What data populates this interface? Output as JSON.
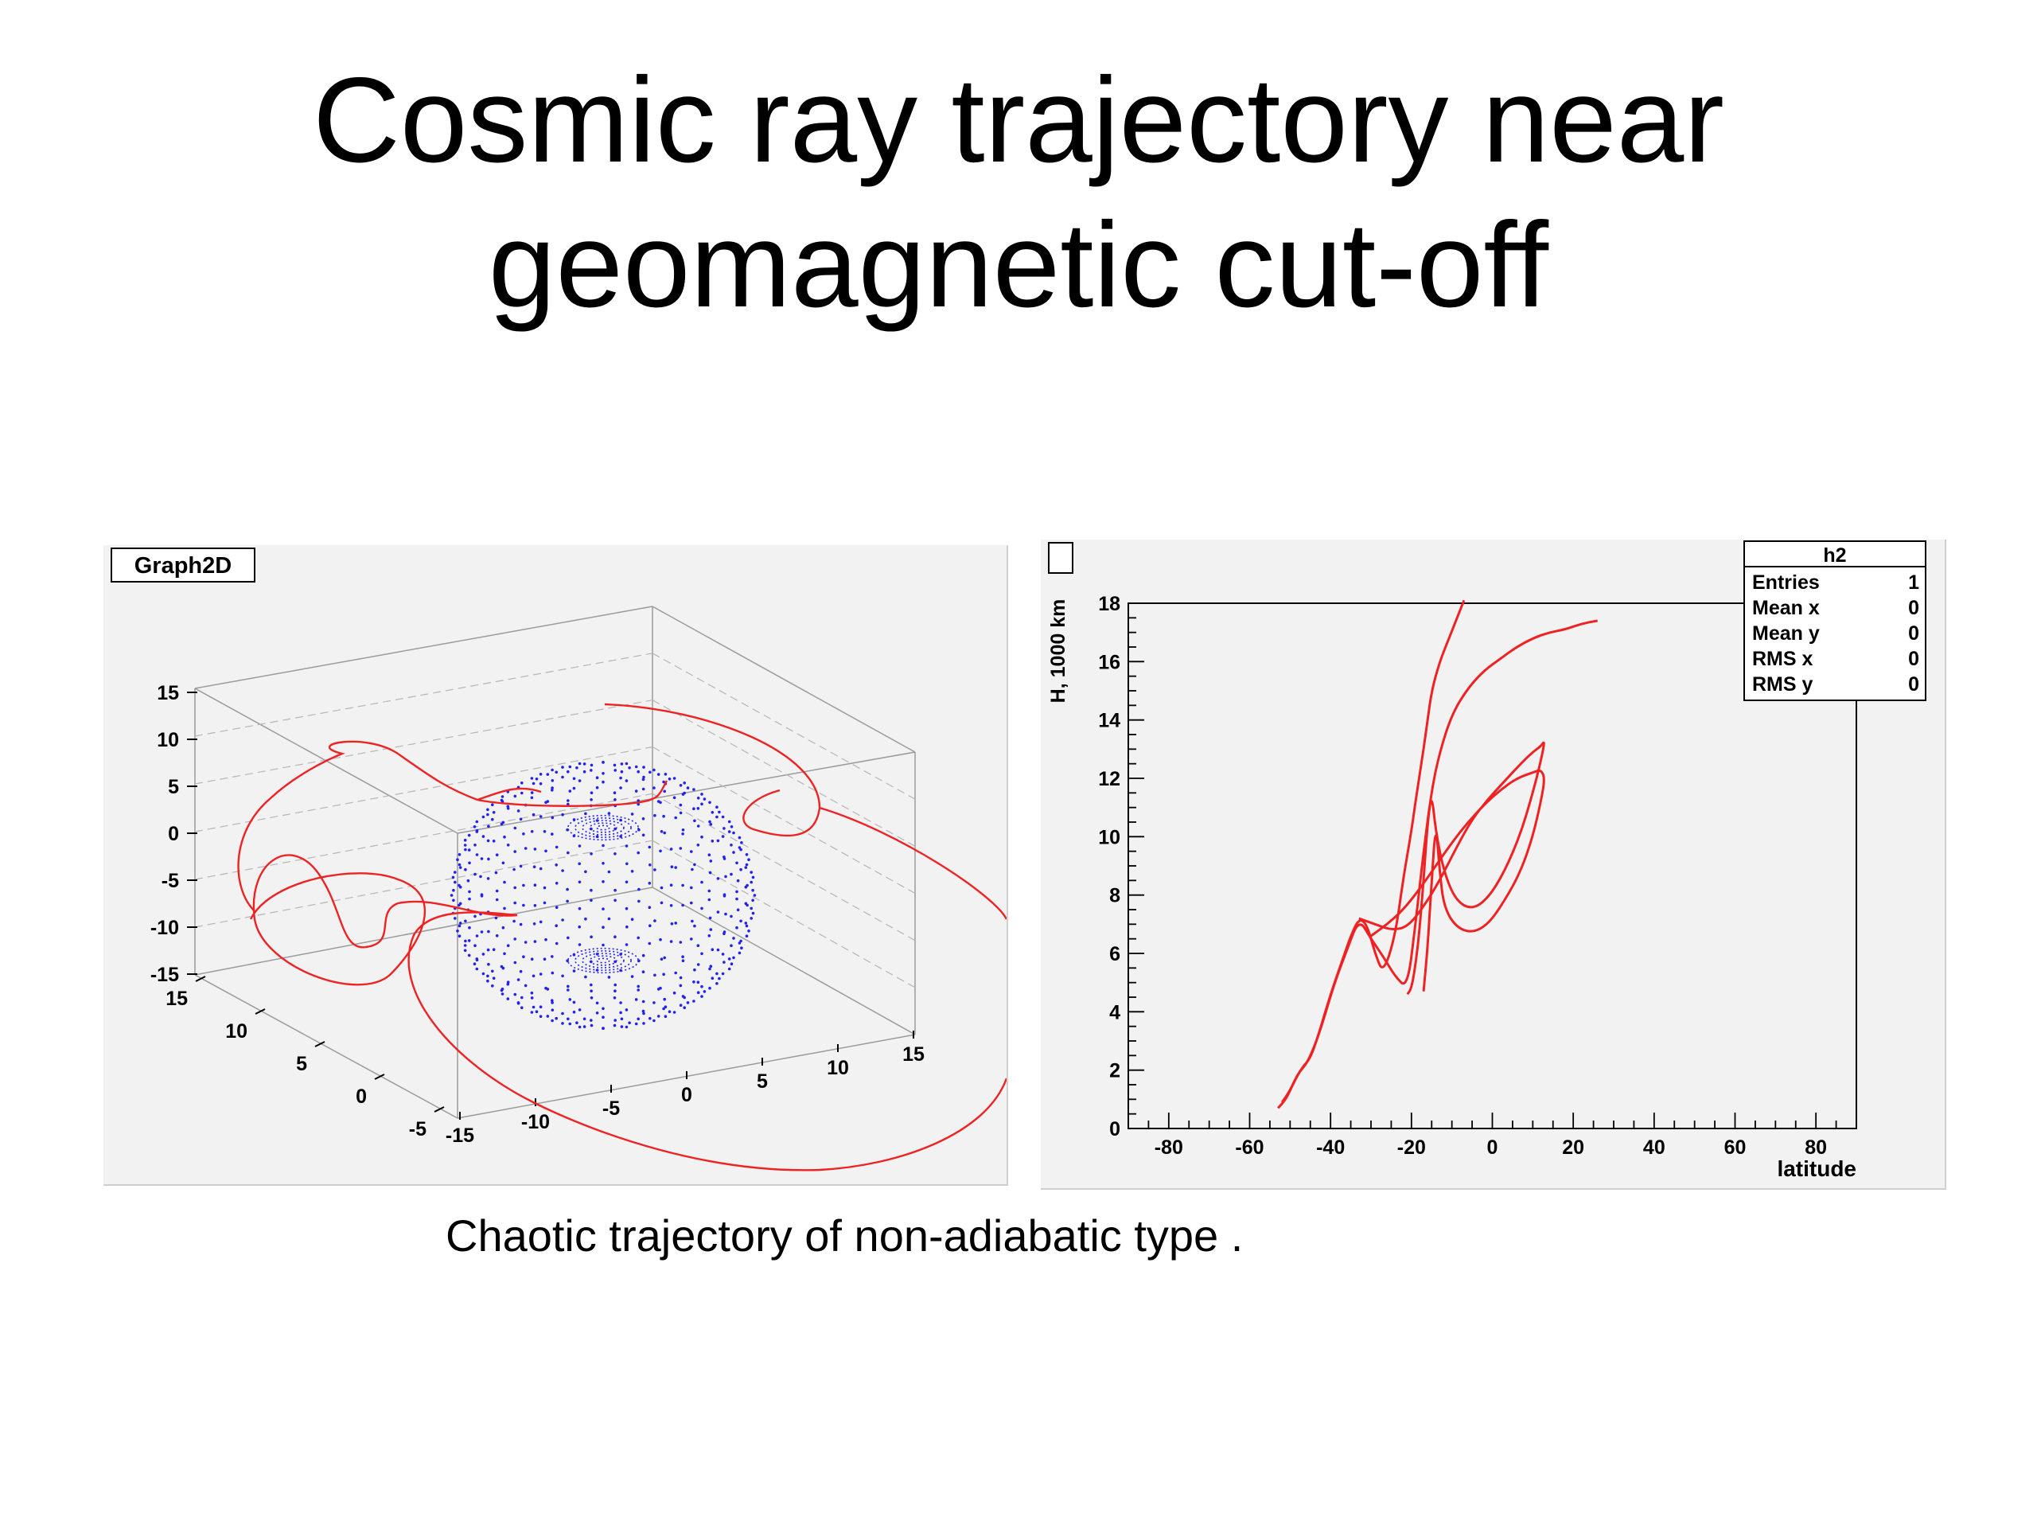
{
  "slide": {
    "title_line1": "Cosmic ray trajectory near",
    "title_line2": "geomagnetic cut-off",
    "caption": "Chaotic trajectory of non-adiabatic type ."
  },
  "chart_data": [
    {
      "type": "scatter",
      "label": "Graph2D",
      "dimensions": 3,
      "x_ticks": [
        "-15",
        "-10",
        "-5",
        "0",
        "5",
        "10",
        "15"
      ],
      "y_ticks": [
        "-5",
        "0",
        "5",
        "10",
        "15"
      ],
      "z_ticks": [
        "-15",
        "-10",
        "-5",
        "0",
        "5",
        "10",
        "15"
      ],
      "xlim": [
        -15,
        15
      ],
      "ylim": [
        -15,
        15
      ],
      "zlim": [
        -15,
        15
      ],
      "series": [
        {
          "points": "Earth sphere point cloud, radius ~6",
          "color": "#2222ee"
        },
        {
          "points": "cosmic ray trajectory curve",
          "color": "#ee2222"
        }
      ],
      "colors": {
        "earth": "#2222ee",
        "trajectory": "#ee2222"
      }
    },
    {
      "type": "line",
      "xlabel": "latitude",
      "ylabel": "H, 1000 km",
      "xlim": [
        -90,
        90
      ],
      "ylim": [
        0,
        18
      ],
      "x_ticks": [
        "-80",
        "-60",
        "-40",
        "-20",
        "0",
        "20",
        "40",
        "60",
        "80"
      ],
      "y_ticks": [
        "0",
        "2",
        "4",
        "6",
        "8",
        "10",
        "12",
        "14",
        "16",
        "18"
      ],
      "color": "#ee2222",
      "series": [
        {
          "x": [
            -53,
            -51,
            -49,
            -47,
            -45,
            -43,
            -40,
            -37,
            -35,
            -33,
            -31,
            -29,
            -27,
            -24,
            -22,
            -20,
            -19,
            -18,
            -17,
            -16,
            -15,
            -13,
            -11,
            -9,
            -7
          ],
          "y": [
            0.7,
            1.0,
            1.6,
            2.1,
            2.4,
            3.2,
            4.6,
            5.8,
            6.6,
            7.2,
            7.0,
            6.0,
            5.3,
            6.6,
            8.6,
            10.2,
            11.2,
            12.1,
            13.0,
            14.0,
            15.0,
            16.0,
            16.7,
            17.4,
            18.1
          ]
        },
        {
          "x": [
            -52,
            -50,
            -48,
            -46,
            -44,
            -42,
            -39,
            -36,
            -33,
            -30,
            -27,
            -24,
            -21,
            -19,
            -17,
            -15,
            -13,
            -10,
            -6,
            -2,
            2,
            6,
            10,
            14,
            18,
            22,
            26
          ],
          "y": [
            0.9,
            1.3,
            1.9,
            2.2,
            2.8,
            3.6,
            5.0,
            6.1,
            7.2,
            6.5,
            5.9,
            5.2,
            4.8,
            7.0,
            9.5,
            11.6,
            12.9,
            14.2,
            15.1,
            15.7,
            16.1,
            16.5,
            16.8,
            17.0,
            17.1,
            17.3,
            17.4
          ]
        },
        {
          "x": [
            -33,
            -29,
            -25,
            -21,
            -17,
            -13,
            -9,
            -5,
            -1,
            3,
            7,
            10,
            12,
            13,
            12,
            10,
            7,
            3,
            -1,
            -5,
            -9,
            -12,
            -14,
            -15,
            -16,
            -17,
            -18,
            -19,
            -20,
            -21
          ],
          "y": [
            7.2,
            7.0,
            6.8,
            6.9,
            7.6,
            8.5,
            9.6,
            10.6,
            11.3,
            11.9,
            12.5,
            12.9,
            13.1,
            13.3,
            12.6,
            11.5,
            10.1,
            8.8,
            7.9,
            7.5,
            7.8,
            8.8,
            10.2,
            11.5,
            10.5,
            8.5,
            6.8,
            5.6,
            4.8,
            4.6
          ]
        },
        {
          "x": [
            -30,
            -26,
            -22,
            -18,
            -14,
            -10,
            -6,
            -2,
            2,
            6,
            10,
            12,
            13,
            12,
            10,
            7,
            3,
            -1,
            -5,
            -9,
            -12,
            -13,
            -14,
            -15,
            -16,
            -17
          ],
          "y": [
            6.6,
            7.0,
            7.5,
            8.2,
            9.0,
            9.8,
            10.5,
            11.1,
            11.6,
            12.0,
            12.2,
            12.3,
            12.0,
            11.2,
            10.0,
            8.8,
            7.8,
            7.0,
            6.7,
            6.9,
            7.6,
            8.8,
            10.5,
            8.5,
            6.2,
            4.7
          ]
        }
      ],
      "stats_box": {
        "title": "h2",
        "rows": [
          {
            "label": "Entries",
            "value": "1"
          },
          {
            "label": "Mean x",
            "value": "0"
          },
          {
            "label": "Mean y",
            "value": "0"
          },
          {
            "label": "RMS x",
            "value": "0"
          },
          {
            "label": "RMS y",
            "value": "0"
          }
        ]
      }
    }
  ]
}
